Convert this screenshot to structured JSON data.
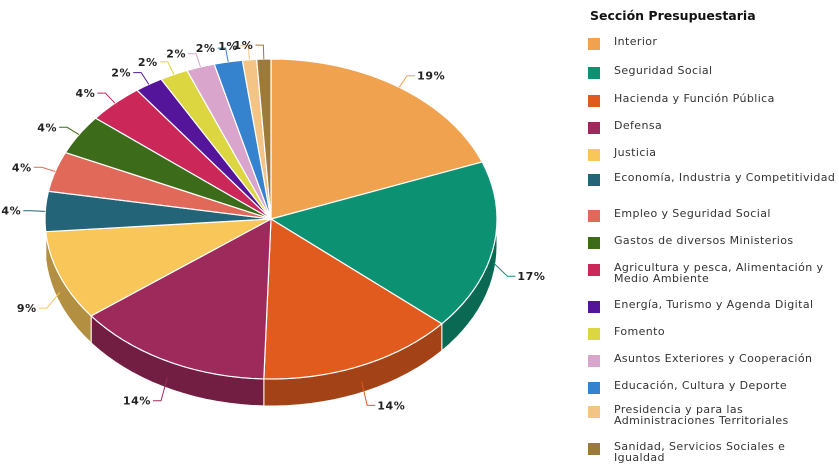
{
  "chart_data": {
    "type": "pie",
    "legend_title": "Sección Presupuestaria",
    "legend_position": "right",
    "slices": [
      {
        "label": "Interior",
        "value": 19,
        "display": "19%",
        "color": "#f0a24e"
      },
      {
        "label": "Seguridad Social",
        "value": 17,
        "display": "17%",
        "color": "#0c9273"
      },
      {
        "label": "Hacienda y Función Pública",
        "value": 14,
        "display": "14%",
        "color": "#e25b1e"
      },
      {
        "label": "Defensa",
        "value": 14,
        "display": "14%",
        "color": "#9e2a5c"
      },
      {
        "label": "Justicia",
        "value": 9,
        "display": "9%",
        "color": "#f9c65a"
      },
      {
        "label": "Economía, Industria y Competitividad",
        "value": 4,
        "display": "4%",
        "color": "#236478"
      },
      {
        "label": "Empleo y Seguridad Social",
        "value": 4,
        "display": "4%",
        "color": "#e0695a"
      },
      {
        "label": "Gastos de diversos Ministerios",
        "value": 4,
        "display": "4%",
        "color": "#3c6b1a"
      },
      {
        "label": "Agricultura y pesca, Alimentación y Medio Ambiente",
        "value": 4,
        "display": "4%",
        "color": "#cc2759"
      },
      {
        "label": "Energía, Turismo y Agenda Digital",
        "value": 2,
        "display": "2%",
        "color": "#55159a"
      },
      {
        "label": "Fomento",
        "value": 2,
        "display": "2%",
        "color": "#dcd641"
      },
      {
        "label": "Asuntos Exteriores y Cooperación",
        "value": 2,
        "display": "2%",
        "color": "#d9a5cd"
      },
      {
        "label": "Educación, Cultura y Deporte",
        "value": 2,
        "display": "2%",
        "color": "#3582cf"
      },
      {
        "label": "Presidencia y para las Administraciones Territoriales",
        "value": 1,
        "display": "1%",
        "color": "#f3c486"
      },
      {
        "label": "Sanidad, Servicios Sociales e Igualdad",
        "value": 1,
        "display": "1%",
        "color": "#9e7a3a"
      }
    ]
  }
}
